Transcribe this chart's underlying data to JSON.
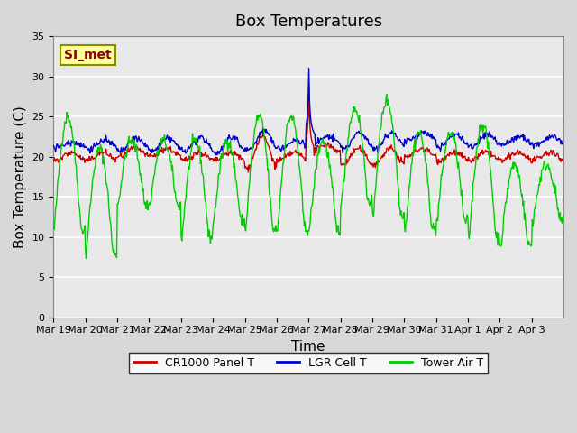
{
  "title": "Box Temperatures",
  "xlabel": "Time",
  "ylabel": "Box Temperature (C)",
  "ylim": [
    0,
    35
  ],
  "yticks": [
    0,
    5,
    10,
    15,
    20,
    25,
    30,
    35
  ],
  "xlabels": [
    "Mar 19",
    "Mar 20",
    "Mar 21",
    "Mar 22",
    "Mar 23",
    "Mar 24",
    "Mar 25",
    "Mar 26",
    "Mar 27",
    "Mar 28",
    "Mar 29",
    "Mar 30",
    "Mar 31",
    "Apr 1",
    "Apr 2",
    "Apr 3"
  ],
  "annotation_text": "SI_met",
  "annotation_color": "#8B0000",
  "annotation_bg": "#FFFF99",
  "annotation_border": "#8B8B00",
  "line_colors": {
    "CR1000 Panel T": "#CC0000",
    "LGR Cell T": "#0000CC",
    "Tower Air T": "#00CC00"
  },
  "legend_labels": [
    "CR1000 Panel T",
    "LGR Cell T",
    "Tower Air T"
  ],
  "plot_bg": "#E8E8E8",
  "fig_bg": "#D8D8D8",
  "grid_color": "#FFFFFF",
  "title_fontsize": 13,
  "axis_label_fontsize": 11
}
